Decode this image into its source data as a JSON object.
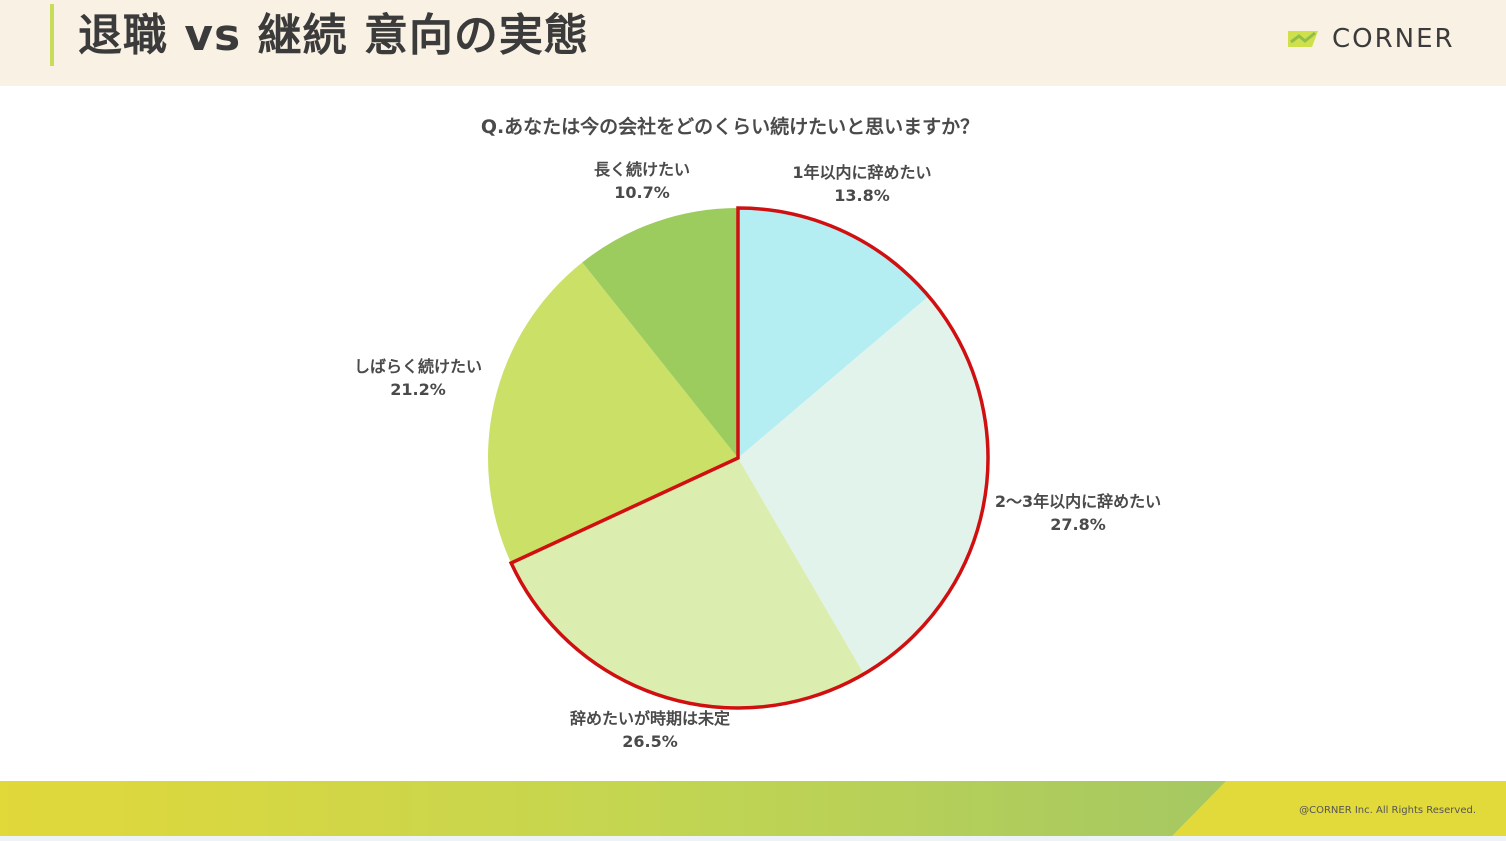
{
  "header": {
    "title": "退職 vs 継続 意向の実態",
    "logo_text": "CORNER"
  },
  "question": "Q.あなたは今の会社をどのくらい続けたいと思いますか？",
  "chart_data": {
    "type": "pie",
    "title": "Q.あなたは今の会社をどのくらい続けたいと思いますか？",
    "start": "12 o'clock",
    "direction": "clockwise",
    "categories": [
      "1年以内に辞めたい",
      "2〜3年以内に辞めたい",
      "辞めたいが時期は未定",
      "しばらく続けたい",
      "長く続けたい"
    ],
    "values": [
      13.8,
      27.8,
      26.5,
      21.2,
      10.7
    ],
    "value_labels": [
      "13.8%",
      "27.8%",
      "26.5%",
      "21.2%",
      "10.7%"
    ],
    "colors": [
      "#b4eef3",
      "#e2f3ec",
      "#dcedb0",
      "#cbe066",
      "#9ccb5e"
    ],
    "highlight": {
      "categories": [
        "1年以内に辞めたい",
        "2〜3年以内に辞めたい",
        "辞めたいが時期は未定"
      ],
      "outline_color": "#d01010"
    }
  },
  "footer": {
    "copyright": "@CORNER Inc. All Rights Reserved."
  }
}
